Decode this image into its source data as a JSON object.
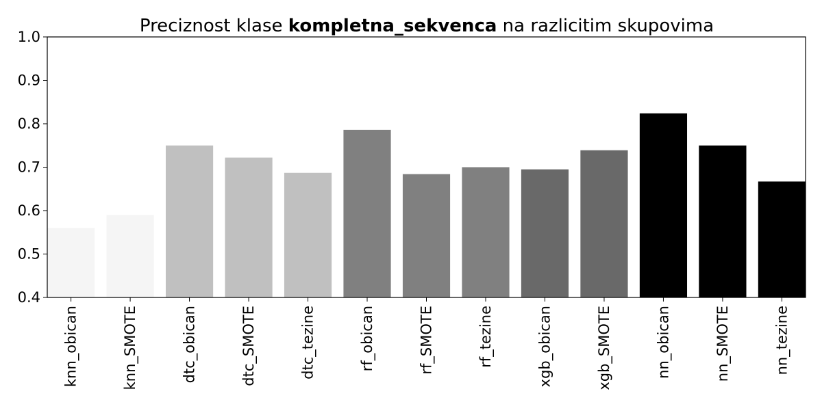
{
  "chart_data": {
    "type": "bar",
    "title_prefix": "Preciznost klase ",
    "title_bold": "kompletna_sekvenca",
    "title_suffix": " na razlicitim skupovima",
    "xlabel": "",
    "ylabel": "",
    "ylim": [
      0.4,
      1.0
    ],
    "yticks": [
      "0.4",
      "0.5",
      "0.6",
      "0.7",
      "0.8",
      "0.9",
      "1.0"
    ],
    "grid": false,
    "categories": [
      "knn_obican",
      "knn_SMOTE",
      "dtc_obican",
      "dtc_SMOTE",
      "dtc_tezine",
      "rf_obican",
      "rf_SMOTE",
      "rf_tezine",
      "xgb_obican",
      "xgb_SMOTE",
      "nn_obican",
      "nn_SMOTE",
      "nn_tezine"
    ],
    "values": [
      0.56,
      0.59,
      0.75,
      0.722,
      0.687,
      0.786,
      0.684,
      0.7,
      0.695,
      0.739,
      0.824,
      0.75,
      0.667
    ],
    "colors": [
      "#f5f5f5",
      "#f5f5f5",
      "#c0c0c0",
      "#c0c0c0",
      "#c0c0c0",
      "#808080",
      "#808080",
      "#808080",
      "#696969",
      "#696969",
      "#000000",
      "#000000",
      "#000000"
    ]
  }
}
